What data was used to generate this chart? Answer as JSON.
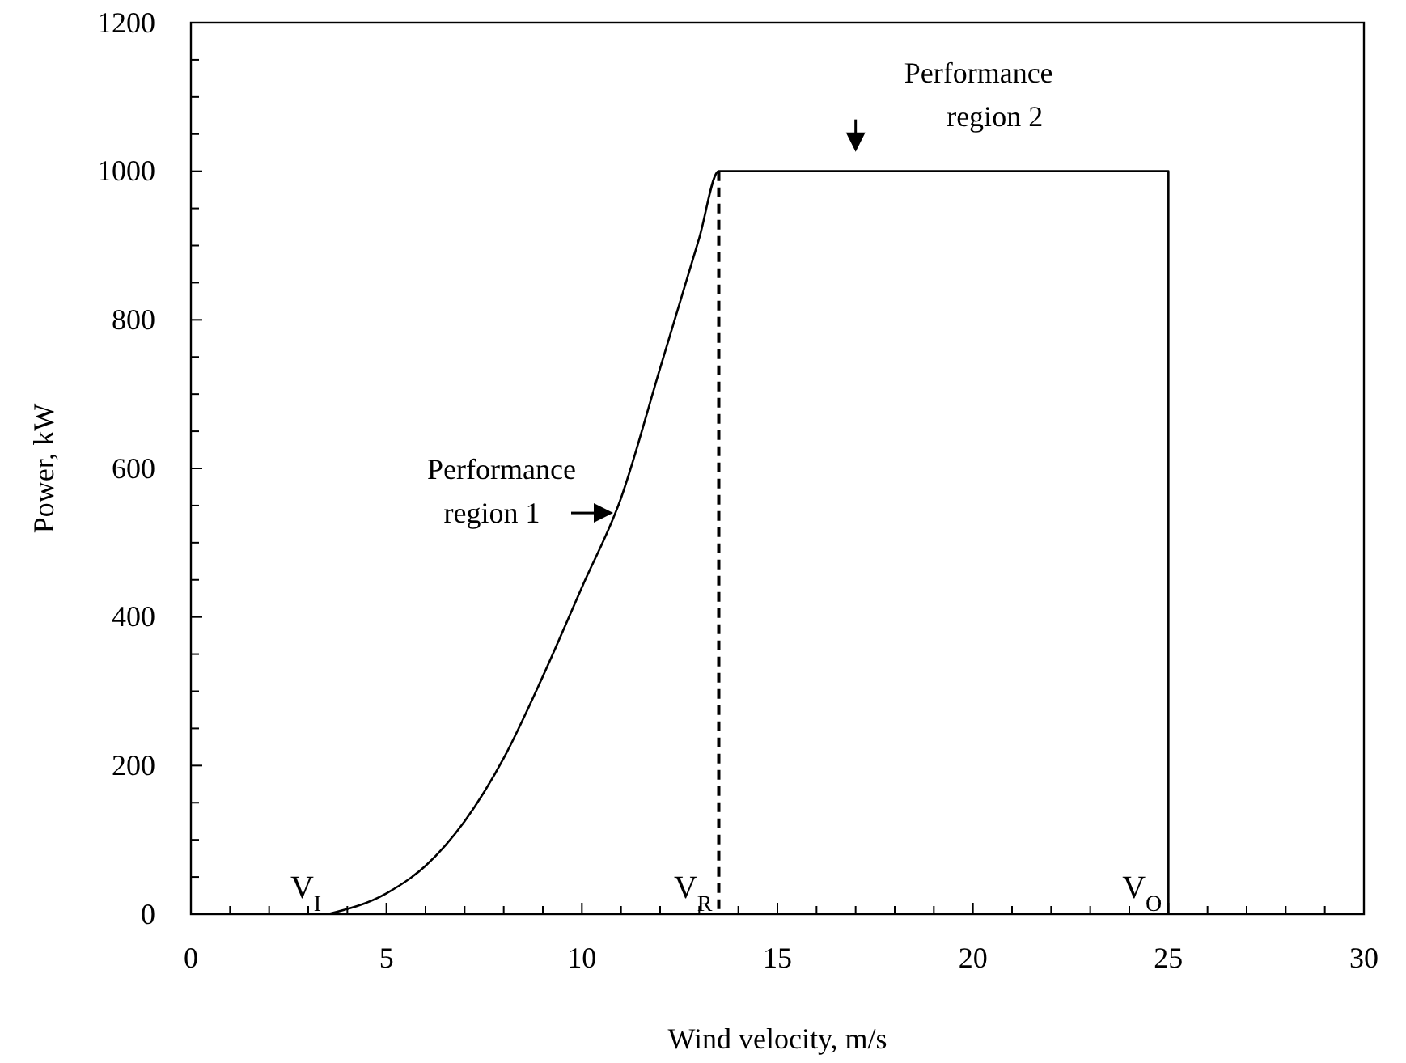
{
  "chart_data": {
    "type": "line",
    "xlabel": "Wind velocity, m/s",
    "ylabel": "Power, kW",
    "xlim": [
      0,
      30
    ],
    "ylim": [
      0,
      1200
    ],
    "xticks": [
      0,
      {
        "value": 1,
        "label": null
      },
      {
        "value": 2,
        "label": null
      },
      {
        "value": 3,
        "label": null
      },
      {
        "value": 4,
        "label": null
      },
      5,
      {
        "value": 6,
        "label": null
      },
      {
        "value": 7,
        "label": null
      },
      {
        "value": 8,
        "label": null
      },
      {
        "value": 9,
        "label": null
      },
      10,
      {
        "value": 11,
        "label": null
      },
      {
        "value": 12,
        "label": null
      },
      {
        "value": 13,
        "label": null
      },
      {
        "value": 14,
        "label": null
      },
      15,
      {
        "value": 16,
        "label": null
      },
      {
        "value": 17,
        "label": null
      },
      {
        "value": 18,
        "label": null
      },
      {
        "value": 19,
        "label": null
      },
      20,
      {
        "value": 21,
        "label": null
      },
      {
        "value": 22,
        "label": null
      },
      {
        "value": 23,
        "label": null
      },
      {
        "value": 24,
        "label": null
      },
      25,
      {
        "value": 26,
        "label": null
      },
      {
        "value": 27,
        "label": null
      },
      {
        "value": 28,
        "label": null
      },
      {
        "value": 29,
        "label": null
      },
      30
    ],
    "yticks": [
      0,
      {
        "value": 50,
        "label": null
      },
      {
        "value": 100,
        "label": null
      },
      {
        "value": 150,
        "label": null
      },
      200,
      {
        "value": 250,
        "label": null
      },
      {
        "value": 300,
        "label": null
      },
      {
        "value": 350,
        "label": null
      },
      400,
      {
        "value": 450,
        "label": null
      },
      {
        "value": 500,
        "label": null
      },
      {
        "value": 550,
        "label": null
      },
      600,
      {
        "value": 650,
        "label": null
      },
      {
        "value": 700,
        "label": null
      },
      {
        "value": 750,
        "label": null
      },
      800,
      {
        "value": 850,
        "label": null
      },
      {
        "value": 900,
        "label": null
      },
      {
        "value": 950,
        "label": null
      },
      1000,
      {
        "value": 1050,
        "label": null
      },
      {
        "value": 1100,
        "label": null
      },
      {
        "value": 1150,
        "label": null
      },
      1200
    ],
    "grid": false,
    "marker": "none",
    "line_style": "solid",
    "series": [
      {
        "color": "#000000",
        "x": [
          3.5,
          5,
          6,
          7,
          8,
          9,
          10,
          11,
          12,
          13,
          13.5,
          25,
          25
        ],
        "values": [
          0,
          28,
          65,
          125,
          210,
          320,
          440,
          560,
          735,
          910,
          1000,
          1000,
          0
        ]
      }
    ],
    "ref_lines": [
      {
        "axis": "x",
        "value": 13.5,
        "color": "#000000",
        "line_style": "dashed"
      }
    ],
    "annotations": [
      {
        "text": "Performance region 1",
        "x": 10.8,
        "y": 540
      },
      {
        "text": "Performance region 2",
        "x": 17,
        "y": 1000
      },
      {
        "text": "V$_{I}$",
        "x": 3.5,
        "y": 0
      },
      {
        "text": "V$_{R}$",
        "x": 13.5,
        "y": 0
      },
      {
        "text": "V$_{O}$",
        "x": 25,
        "y": 0
      }
    ]
  }
}
